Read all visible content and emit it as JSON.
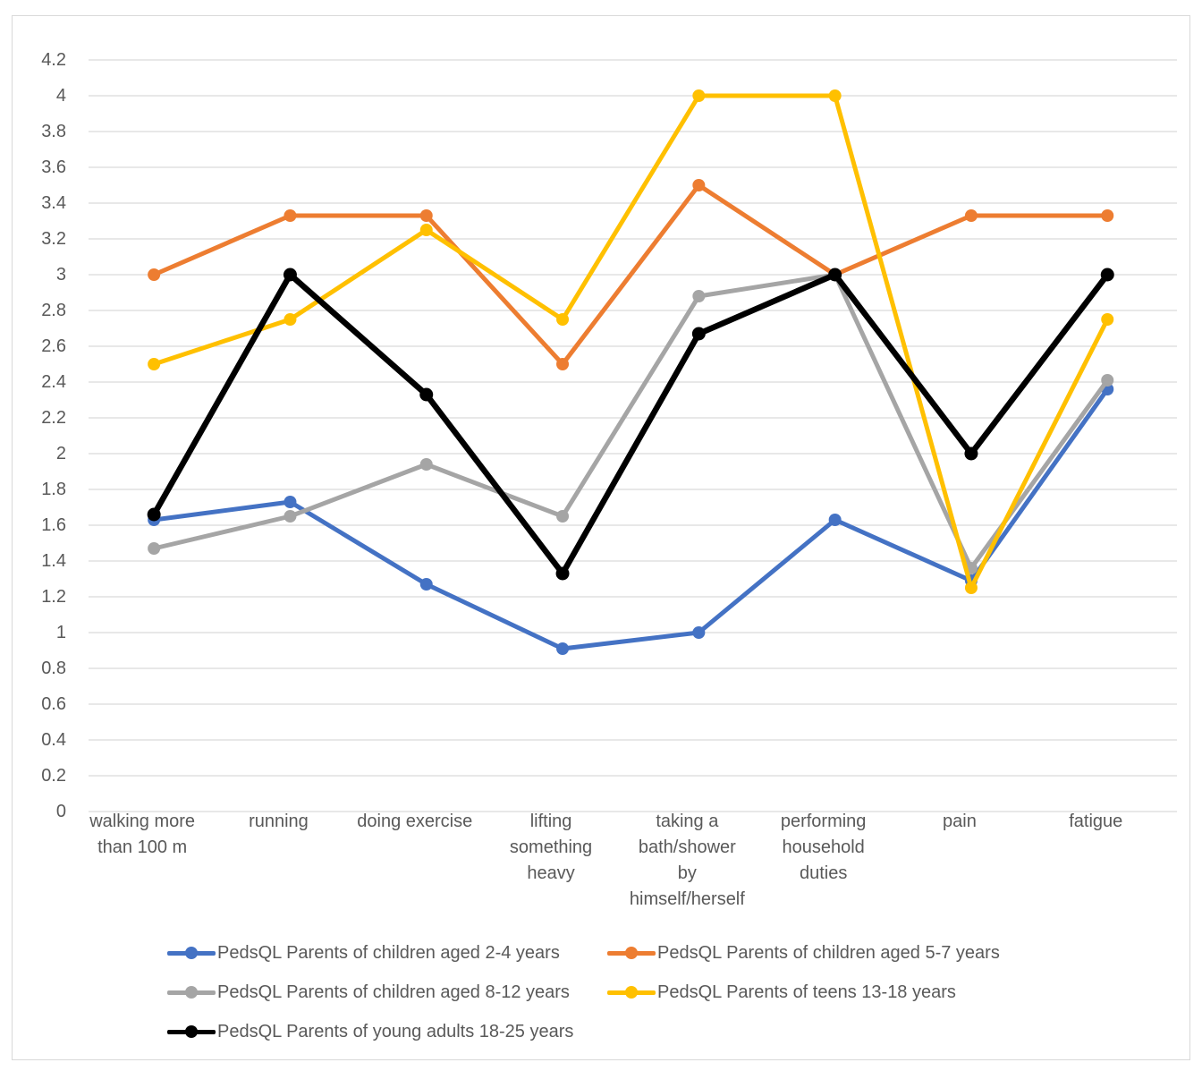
{
  "chart_data": {
    "type": "line",
    "title": "",
    "xlabel": "",
    "ylabel": "",
    "ylim": [
      0,
      4.2
    ],
    "y_tick_step": 0.2,
    "grid": "horizontal",
    "legend_position": "bottom",
    "y_ticks": [
      "4.2",
      "4",
      "3.8",
      "3.6",
      "3.4",
      "3.2",
      "3",
      "2.8",
      "2.6",
      "2.4",
      "2.2",
      "2",
      "1.8",
      "1.6",
      "1.4",
      "1.2",
      "1",
      "0.8",
      "0.6",
      "0.4",
      "0.2",
      "0"
    ],
    "categories": [
      "walking more than 100 m",
      "running",
      "doing exercise",
      "lifting something heavy",
      "taking a bath/shower by himself/herself",
      "performing household duties",
      "pain",
      "fatigue"
    ],
    "x_tick_labels_wrapped": [
      "walking more\nthan 100 m",
      "running",
      "doing exercise",
      "lifting\nsomething\nheavy",
      "taking a\nbath/shower\nby\nhimself/herself",
      "performing\nhousehold\nduties",
      "pain",
      "fatigue"
    ],
    "series": [
      {
        "name": "PedsQL Parents of children aged 2-4 years",
        "color": "#4472C4",
        "values": [
          1.63,
          1.73,
          1.27,
          0.91,
          1.0,
          1.63,
          1.29,
          2.36
        ]
      },
      {
        "name": "PedsQL Parents of children aged 5-7 years",
        "color": "#ED7D31",
        "values": [
          3.0,
          3.33,
          3.33,
          2.5,
          3.5,
          3.0,
          3.33,
          3.33
        ]
      },
      {
        "name": "PedsQL Parents of children aged 8-12 years",
        "color": "#A5A5A5",
        "values": [
          1.47,
          1.65,
          1.94,
          1.65,
          2.88,
          3.0,
          1.36,
          2.41
        ]
      },
      {
        "name": "PedsQL Parents of teens 13-18 years",
        "color": "#FFC000",
        "values": [
          2.5,
          2.75,
          3.25,
          2.75,
          4.0,
          4.0,
          1.25,
          2.75
        ]
      },
      {
        "name": "PedsQL Parents of young adults 18-25 years",
        "color": "#000000",
        "values": [
          1.66,
          3.0,
          2.33,
          1.33,
          2.67,
          3.0,
          2.0,
          3.0
        ]
      }
    ],
    "colors": {
      "grid": "#D9D9D9",
      "frame_border": "#D9D9D9",
      "axis_text": "#595959",
      "background": "#FFFFFF"
    }
  }
}
